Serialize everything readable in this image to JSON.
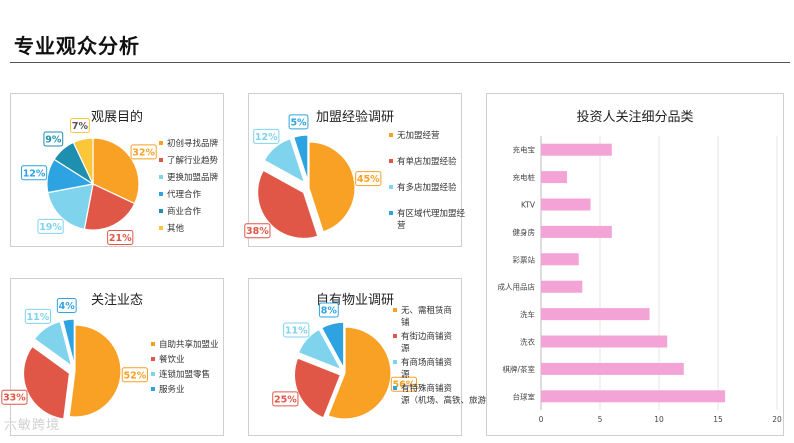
{
  "page": {
    "title": "专业观众分析",
    "watermark": "六敏跨境"
  },
  "colors": {
    "orange": "#f8a124",
    "red": "#e05748",
    "light_blue": "#7fd3ec",
    "blue": "#2ea3e1",
    "teal": "#1f8fb0",
    "yellow": "#fcc63a",
    "pink": "#f3a3d5"
  },
  "chart_data": [
    {
      "type": "pie",
      "title": "观展目的",
      "slices": [
        {
          "label": "初创寻找品牌",
          "value": 32,
          "display": "32%",
          "color": "#f8a124"
        },
        {
          "label": "了解行业趋势",
          "value": 21,
          "display": "21%",
          "color": "#e05748"
        },
        {
          "label": "更换加盟品牌",
          "value": 19,
          "display": "19%",
          "color": "#7fd3ec"
        },
        {
          "label": "代理合作",
          "value": 12,
          "display": "12%",
          "color": "#2ea3e1"
        },
        {
          "label": "商业合作",
          "value": 9,
          "display": "9%",
          "color": "#1f8fb0"
        },
        {
          "label": "其他",
          "value": 7,
          "display": "7%",
          "color": "#fcc63a"
        }
      ]
    },
    {
      "type": "pie",
      "title": "加盟经验调研",
      "slices": [
        {
          "label": "无加盟经营",
          "value": 45,
          "display": "45%",
          "color": "#f8a124"
        },
        {
          "label": "有单店加盟经验",
          "value": 38,
          "display": "38%",
          "color": "#e05748"
        },
        {
          "label": "有多店加盟经验",
          "value": 12,
          "display": "12%",
          "color": "#7fd3ec"
        },
        {
          "label": "有区域代理加盟经营",
          "value": 5,
          "display": "5%",
          "color": "#2ea3e1"
        }
      ]
    },
    {
      "type": "pie",
      "title": "关注业态",
      "slices": [
        {
          "label": "自助共享加盟业",
          "value": 52,
          "display": "52%",
          "color": "#f8a124"
        },
        {
          "label": "餐饮业",
          "value": 33,
          "display": "33%",
          "color": "#e05748"
        },
        {
          "label": "连锁加盟零售",
          "value": 11,
          "display": "11%",
          "color": "#7fd3ec"
        },
        {
          "label": "服务业",
          "value": 4,
          "display": "4%",
          "color": "#2ea3e1"
        }
      ]
    },
    {
      "type": "pie",
      "title": "自有物业调研",
      "slices": [
        {
          "label": "无、需租赁商铺",
          "value": 56,
          "display": "56%",
          "color": "#f8a124"
        },
        {
          "label": "有街边商铺资源",
          "value": 25,
          "display": "25%",
          "color": "#e05748"
        },
        {
          "label": "有商场商铺资源",
          "value": 11,
          "display": "11%",
          "color": "#7fd3ec"
        },
        {
          "label": "有特殊商铺资源（机场、高铁、旅游景点）",
          "value": 8,
          "display": "8%",
          "color": "#2ea3e1"
        }
      ]
    },
    {
      "type": "bar",
      "orientation": "horizontal",
      "title": "投资人关注细分品类",
      "categories": [
        "充电宝",
        "充电桩",
        "KTV",
        "健身房",
        "彩票站",
        "成人用品店",
        "洗车",
        "洗衣",
        "棋牌/茶室",
        "台球室"
      ],
      "values": [
        6,
        2.2,
        4.2,
        6,
        3.2,
        3.5,
        9.2,
        10.7,
        12.1,
        15.6
      ],
      "xlim": [
        0,
        20
      ],
      "xticks": [
        "0",
        "5",
        "10",
        "15",
        "20"
      ],
      "grid": true,
      "color": "#f3a3d5"
    }
  ]
}
